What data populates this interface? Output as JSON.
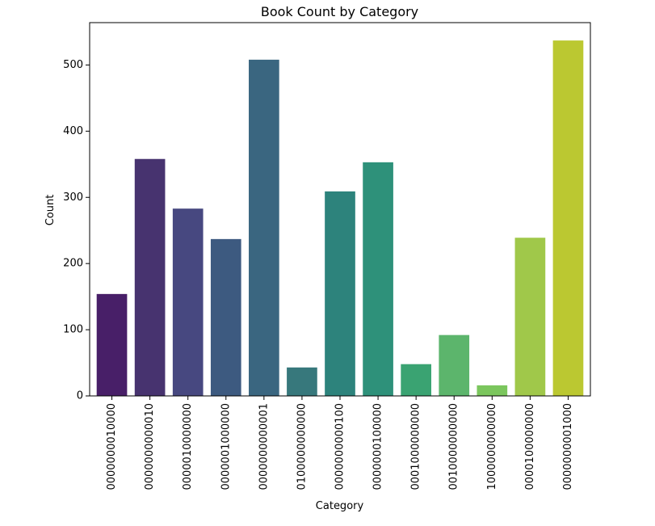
{
  "chart_data": {
    "type": "bar",
    "title": "Book Count by Category",
    "xlabel": "Category",
    "ylabel": "Count",
    "categories": [
      "0000000010000",
      "0000000000010",
      "0000010000000",
      "0000001000000",
      "0000000000001",
      "0100000000000",
      "0000000000100",
      "0000000100000",
      "0001000000000",
      "0010000000000",
      "1000000000000",
      "0000100000000",
      "0000000001000"
    ],
    "values": [
      154,
      358,
      283,
      237,
      508,
      43,
      309,
      353,
      48,
      92,
      16,
      239,
      537
    ],
    "ylim": [
      0,
      564
    ],
    "yticks": [
      0,
      100,
      200,
      300,
      400,
      500
    ],
    "grid": false,
    "colors": [
      "#481f68",
      "#47336f",
      "#474880",
      "#3d5a80",
      "#3a6680",
      "#37787c",
      "#2d837c",
      "#2e917a",
      "#3aa372",
      "#5cb56c",
      "#7bc65d",
      "#a0c84a",
      "#bbc831"
    ]
  }
}
